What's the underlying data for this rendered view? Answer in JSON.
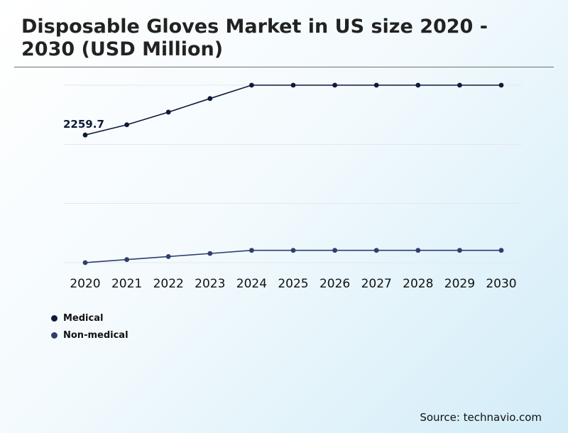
{
  "chart_data": {
    "type": "line",
    "title": "Disposable Gloves Market in US size 2020 - 2030 (USD Million)",
    "x": [
      "2020",
      "2021",
      "2022",
      "2023",
      "2024",
      "2025",
      "2026",
      "2027",
      "2028",
      "2029",
      "2030"
    ],
    "series": [
      {
        "name": "Medical",
        "color": "#0d1a3a",
        "values": [
          2259.7,
          2347,
          2455,
          2571,
          2685,
          2685,
          2685,
          2685,
          2685,
          2685,
          2685
        ]
      },
      {
        "name": "Non-medical",
        "color": "#2e3f6e",
        "values": [
          1170,
          1196,
          1222,
          1248,
          1275,
          1275,
          1275,
          1275,
          1275,
          1275,
          1275
        ]
      }
    ],
    "annotations": [
      {
        "series": 0,
        "index": 0,
        "text": "2259.7"
      }
    ],
    "ylim": [
      1170,
      2685
    ],
    "grid": true,
    "legend_position": "bottom-left"
  },
  "source": "Source: technavio.com"
}
